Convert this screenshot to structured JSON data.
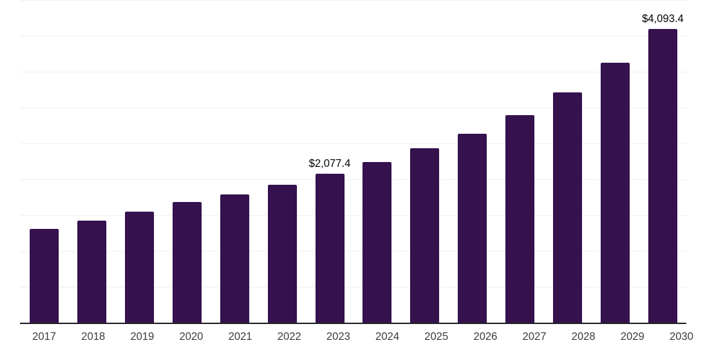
{
  "chart_data": {
    "type": "bar",
    "title": "",
    "xlabel": "",
    "ylabel": "",
    "categories": [
      "2017",
      "2018",
      "2019",
      "2020",
      "2021",
      "2022",
      "2023",
      "2024",
      "2025",
      "2026",
      "2027",
      "2028",
      "2029",
      "2030"
    ],
    "values": [
      1305,
      1420,
      1545,
      1680,
      1785,
      1920,
      2077.4,
      2236,
      2437,
      2639,
      2898,
      3214,
      3627,
      4093.4
    ],
    "point_labels": [
      "",
      "",
      "",
      "",
      "",
      "",
      "$2,077.4",
      "",
      "",
      "",
      "",
      "",
      "",
      "$4,093.4"
    ],
    "ylim": [
      0,
      4500
    ],
    "gridline_step": 500,
    "grid": "horizontal-only",
    "legend": "none",
    "y_tick_labels_visible": false,
    "colors": {
      "bar": "#35124E",
      "gridline": "#f0f0f0",
      "axis_line": "#26242a",
      "tick_label": "#3a3a3a",
      "point_label": "#000000",
      "background": "#ffffff"
    }
  }
}
